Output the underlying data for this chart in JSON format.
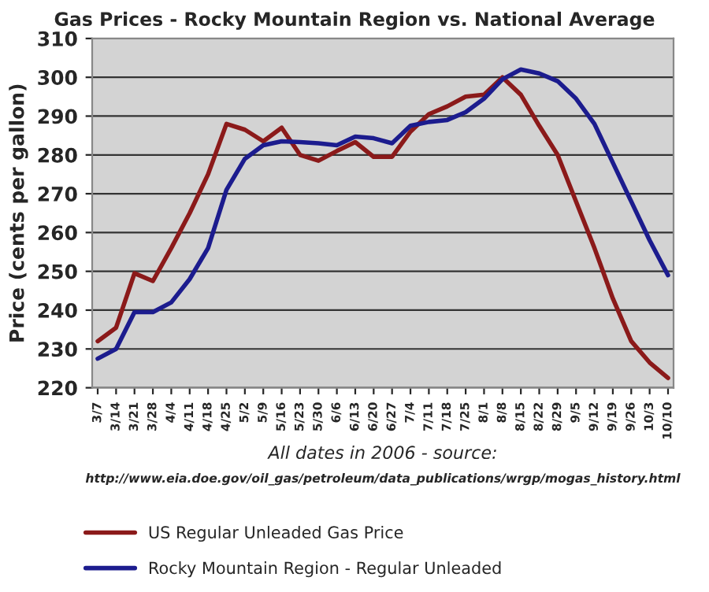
{
  "chart_data": {
    "type": "line",
    "title": "Gas Prices - Rocky Mountain Region vs. National Average",
    "ylabel": "Price (cents per gallon)",
    "categories": [
      "3/7",
      "3/14",
      "3/21",
      "3/28",
      "4/4",
      "4/11",
      "4/18",
      "4/25",
      "5/2",
      "5/9",
      "5/16",
      "5/23",
      "5/30",
      "6/6",
      "6/13",
      "6/20",
      "6/27",
      "7/4",
      "7/11",
      "7/18",
      "7/25",
      "8/1",
      "8/8",
      "8/15",
      "8/22",
      "8/29",
      "9/5",
      "9/12",
      "9/19",
      "9/26",
      "10/3",
      "10/10"
    ],
    "series": [
      {
        "name": "US Regular Unleaded Gas Price",
        "color": "#8b1a1a",
        "values": [
          232,
          235.5,
          249.5,
          247.5,
          256,
          265,
          275,
          288,
          286.5,
          283.5,
          287,
          280,
          278.5,
          281,
          283.3,
          279.5,
          279.5,
          286,
          290.5,
          292.5,
          295,
          295.5,
          300,
          295.5,
          287.5,
          280,
          268,
          256,
          243,
          232,
          226.5,
          222.5
        ]
      },
      {
        "name": "Rocky Mountain Region - Regular Unleaded",
        "color": "#1c1c8e",
        "values": [
          227.5,
          230,
          239.5,
          239.5,
          242,
          248,
          256,
          271,
          279,
          282.5,
          283.5,
          283.3,
          283,
          282.5,
          284.7,
          284.3,
          283,
          287.5,
          288.5,
          289,
          291,
          294.5,
          299.5,
          302,
          301,
          299,
          294.5,
          288,
          278,
          268,
          258,
          249
        ]
      }
    ],
    "ylim": [
      220,
      310
    ],
    "yticks": [
      220,
      230,
      240,
      250,
      260,
      270,
      280,
      290,
      300,
      310
    ],
    "grid": "y",
    "legend": "bottom",
    "marker": "none",
    "line_style": "solid",
    "annotations": [
      "All dates in 2006 - source:",
      "http://www.eia.doe.gov/oil_gas/petroleum/data_publications/wrgp/mogas_history.html"
    ]
  }
}
